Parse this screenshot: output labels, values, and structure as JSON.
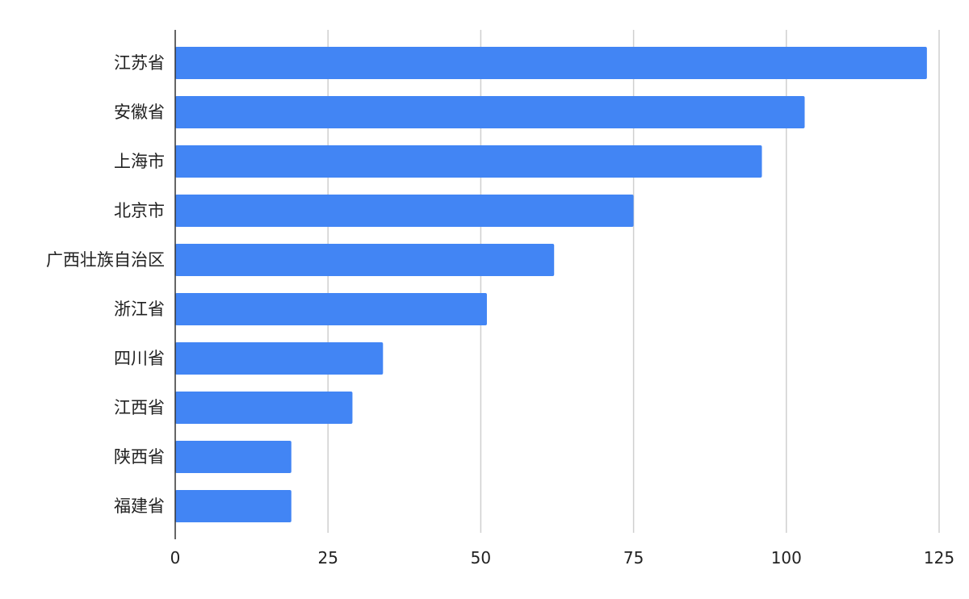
{
  "chart_data": {
    "type": "bar",
    "orientation": "horizontal",
    "title": "",
    "xlabel": "",
    "ylabel": "",
    "categories": [
      "江苏省",
      "安徽省",
      "上海市",
      "北京市",
      "广西壮族自治区",
      "浙江省",
      "四川省",
      "江西省",
      "陕西省",
      "福建省"
    ],
    "values": [
      123,
      103,
      96,
      75,
      62,
      51,
      34,
      29,
      19,
      19
    ],
    "xlim": [
      0,
      125
    ],
    "xticks": [
      0,
      25,
      50,
      75,
      100,
      125
    ],
    "xtick_labels": [
      "0",
      "25",
      "50",
      "75",
      "100",
      "125"
    ],
    "grid": true,
    "legend": "none",
    "bar_color": "#4285f4",
    "gridline_color": "#cfcfcf",
    "axis_color": "#333333"
  }
}
